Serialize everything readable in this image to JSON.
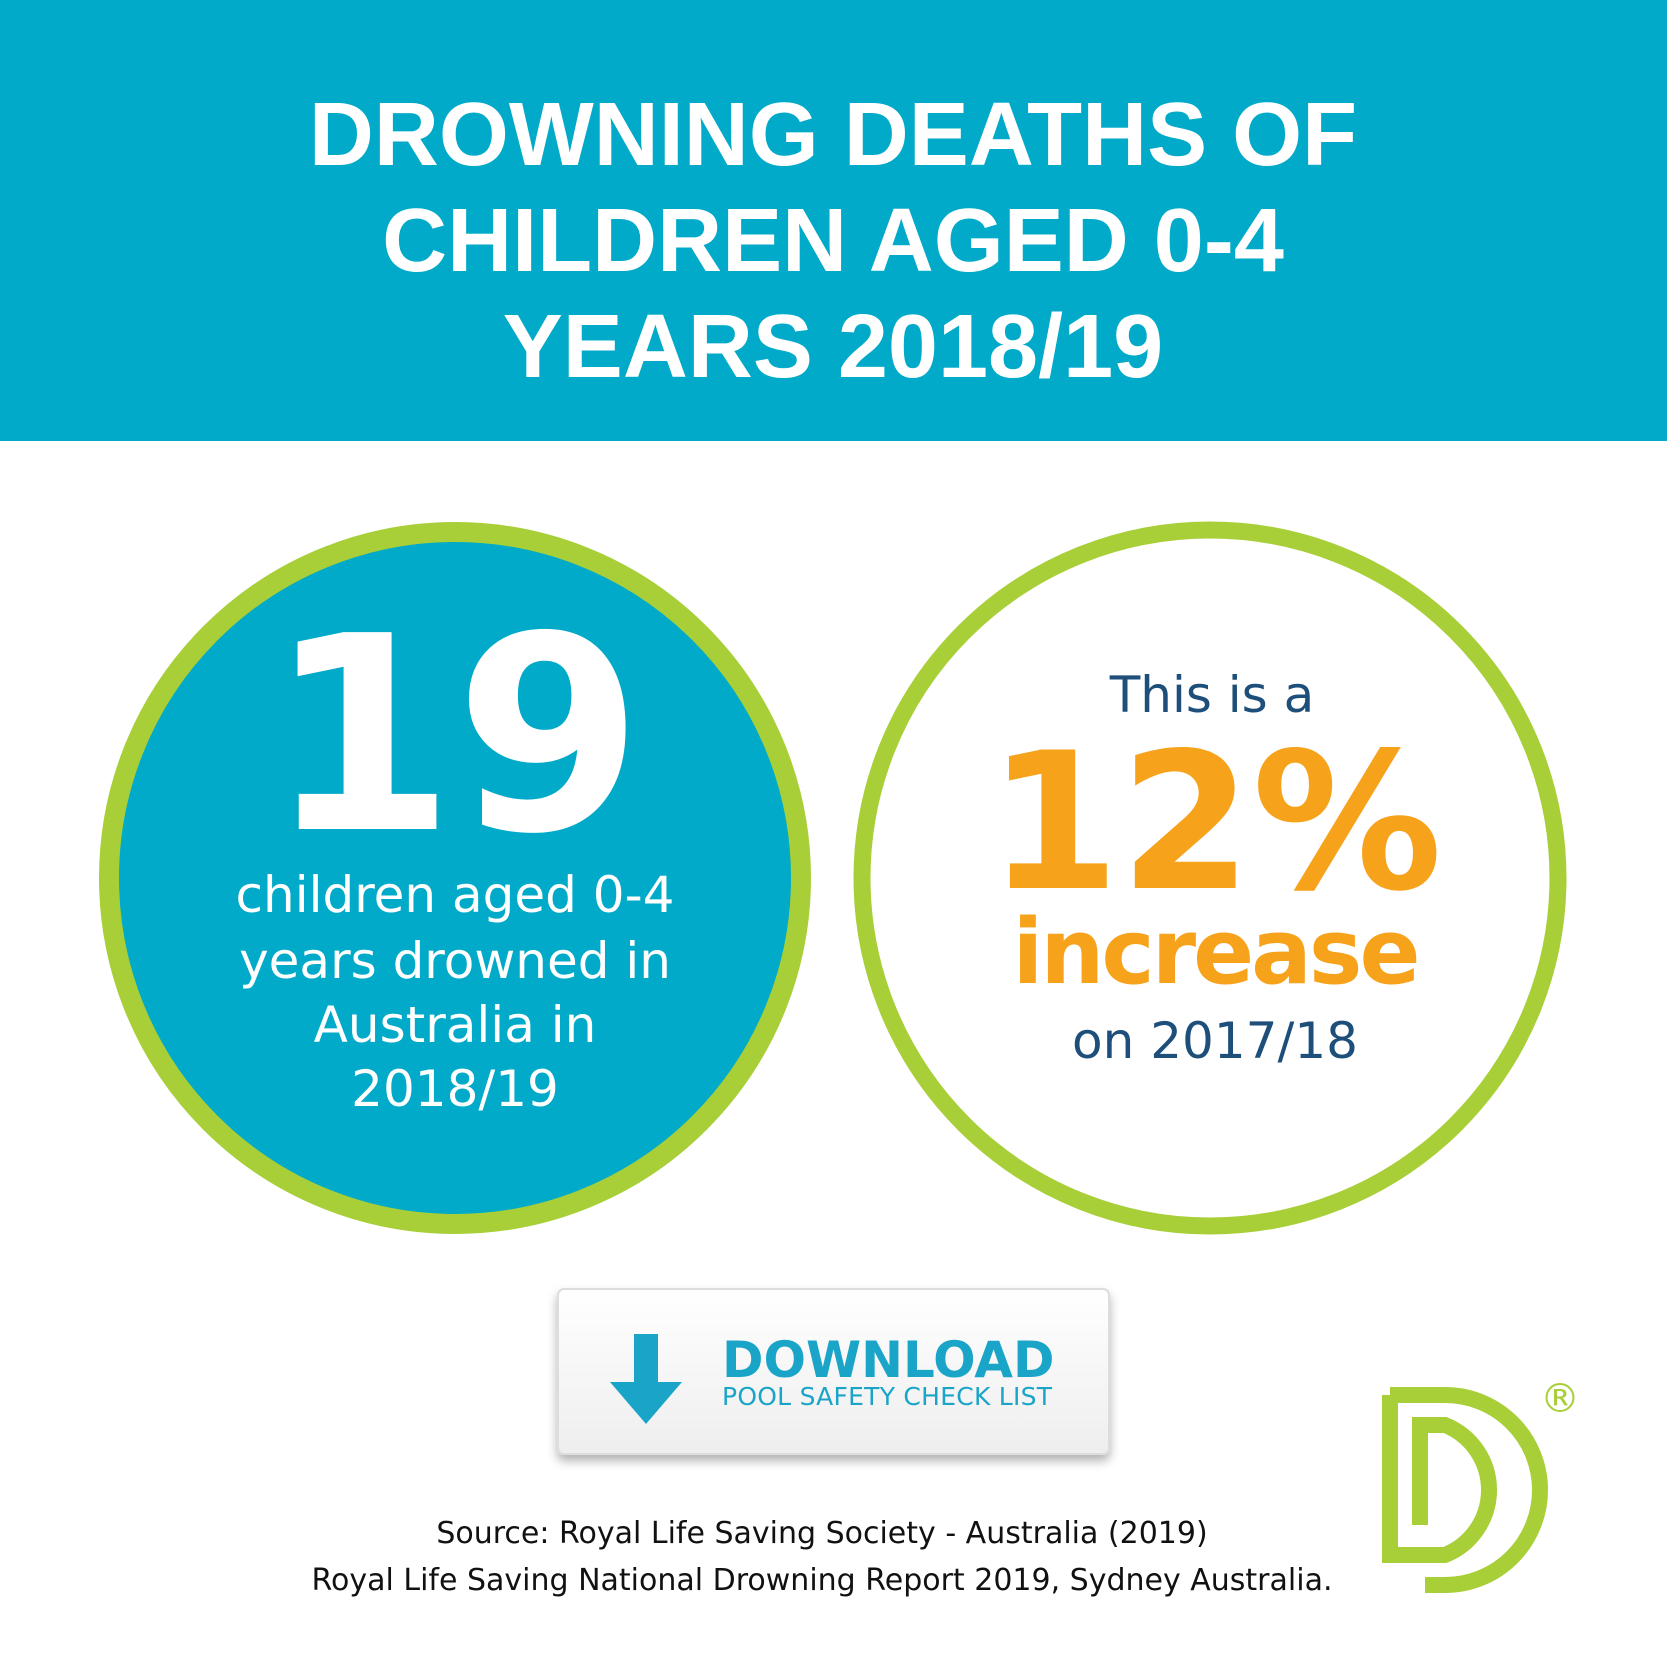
{
  "header": {
    "title": [
      "DROWNING DEATHS OF",
      "CHILDREN AGED 0-4",
      "YEARS 2018/19"
    ]
  },
  "stat_left": {
    "number": "19",
    "text": [
      "children aged 0-4",
      "years drowned in",
      "Australia in",
      "2018/19"
    ]
  },
  "stat_right": {
    "intro": "This is a",
    "number": "12%",
    "word": "increase",
    "text": "on 2017/18"
  },
  "button": {
    "label": "DOWNLOAD",
    "sublabel": "POOL SAFETY CHECK LIST"
  },
  "source": [
    "Source: Royal Life Saving Society - Australia (2019)",
    "Royal Life Saving National Drowning Report 2019, Sydney Australia."
  ],
  "logo": {
    "mark": "®"
  }
}
